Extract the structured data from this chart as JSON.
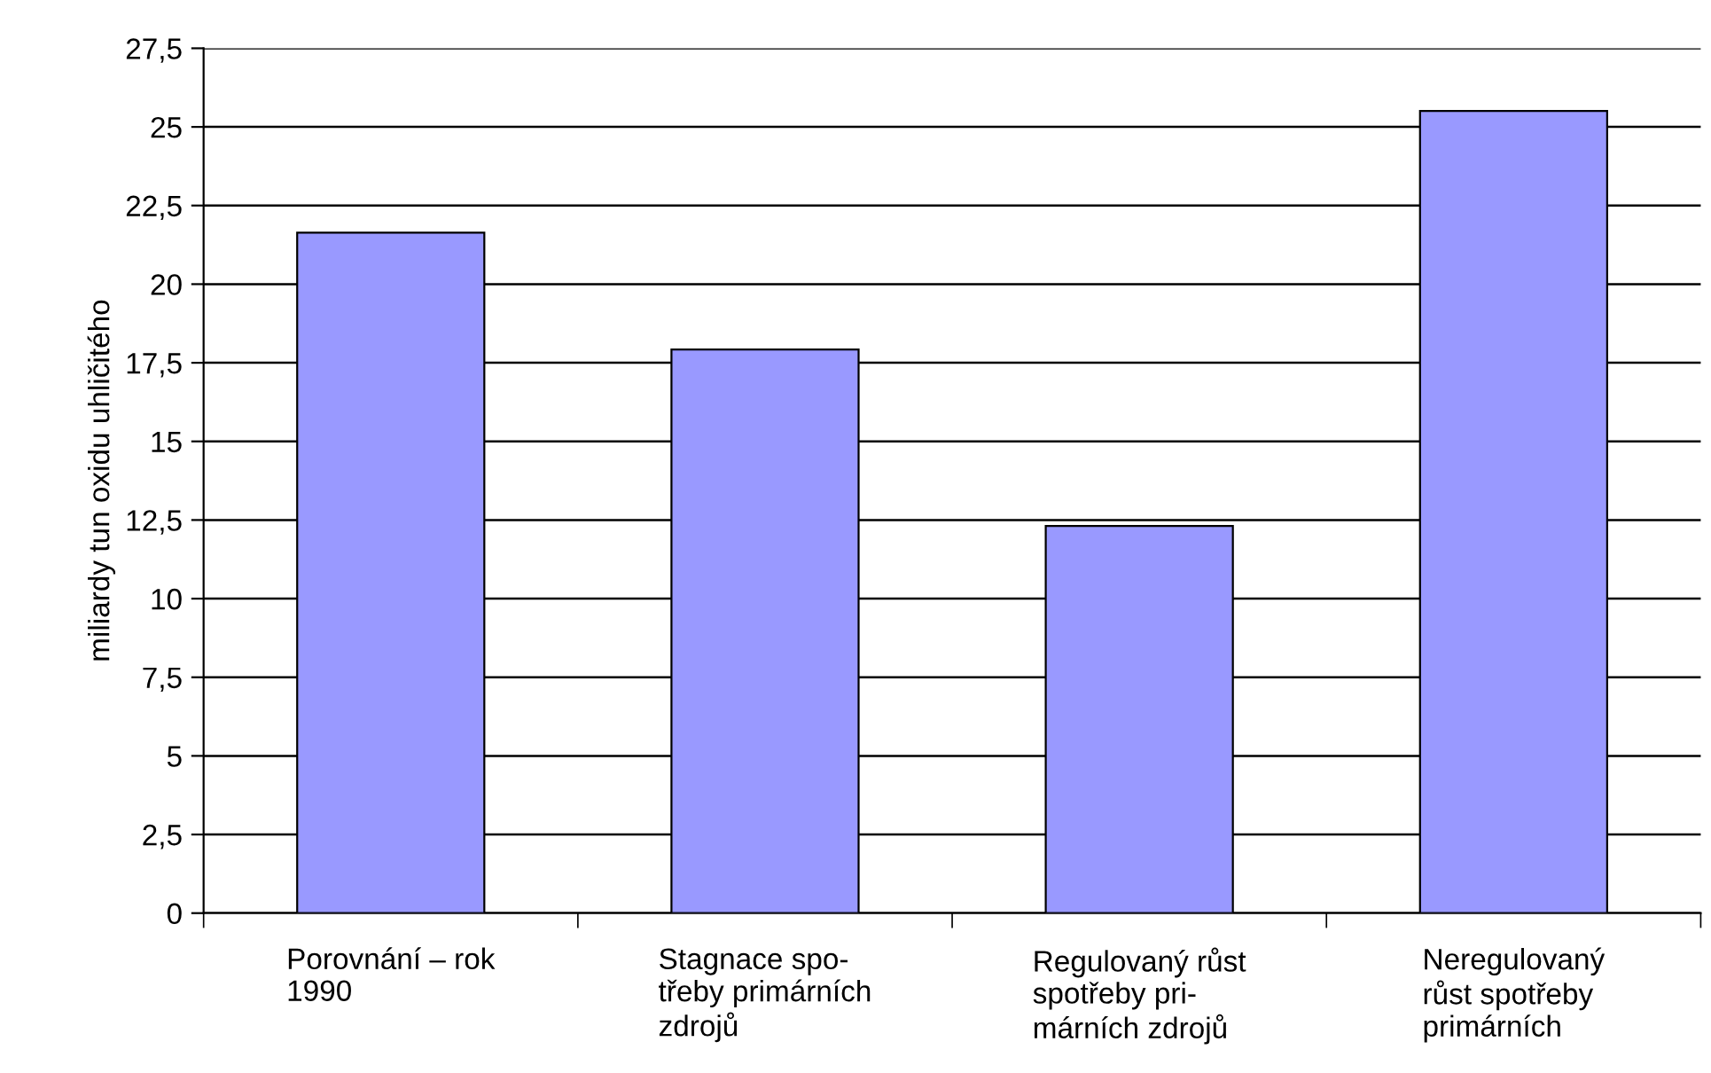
{
  "chart_data": {
    "type": "bar",
    "ylabel": "miliardy tun oxidu uhličitého",
    "categories": [
      "Porovnání – rok\n1990",
      "Stagnace spo-\ntřeby primárních\nzdrojů",
      "Regulovaný růst\nspotřeby pri-\nmárních zdrojů",
      "Neregulovaný\nrůst spotřeby\nprimárních"
    ],
    "values": [
      21.64,
      17.92,
      12.31,
      25.51
    ],
    "color": "#9999ff",
    "ylim": [
      0,
      27.5
    ],
    "yticks": [
      {
        "value": 0,
        "label": "0"
      },
      {
        "value": 2.5,
        "label": "2,5"
      },
      {
        "value": 5,
        "label": "5"
      },
      {
        "value": 7.5,
        "label": "7,5"
      },
      {
        "value": 10,
        "label": "10"
      },
      {
        "value": 12.5,
        "label": "12,5"
      },
      {
        "value": 15,
        "label": "15"
      },
      {
        "value": 17.5,
        "label": "17,5"
      },
      {
        "value": 20,
        "label": "20"
      },
      {
        "value": 22.5,
        "label": "22,5"
      },
      {
        "value": 25,
        "label": "25"
      },
      {
        "value": 27.5,
        "label": "27,5"
      }
    ],
    "grid": "y"
  }
}
